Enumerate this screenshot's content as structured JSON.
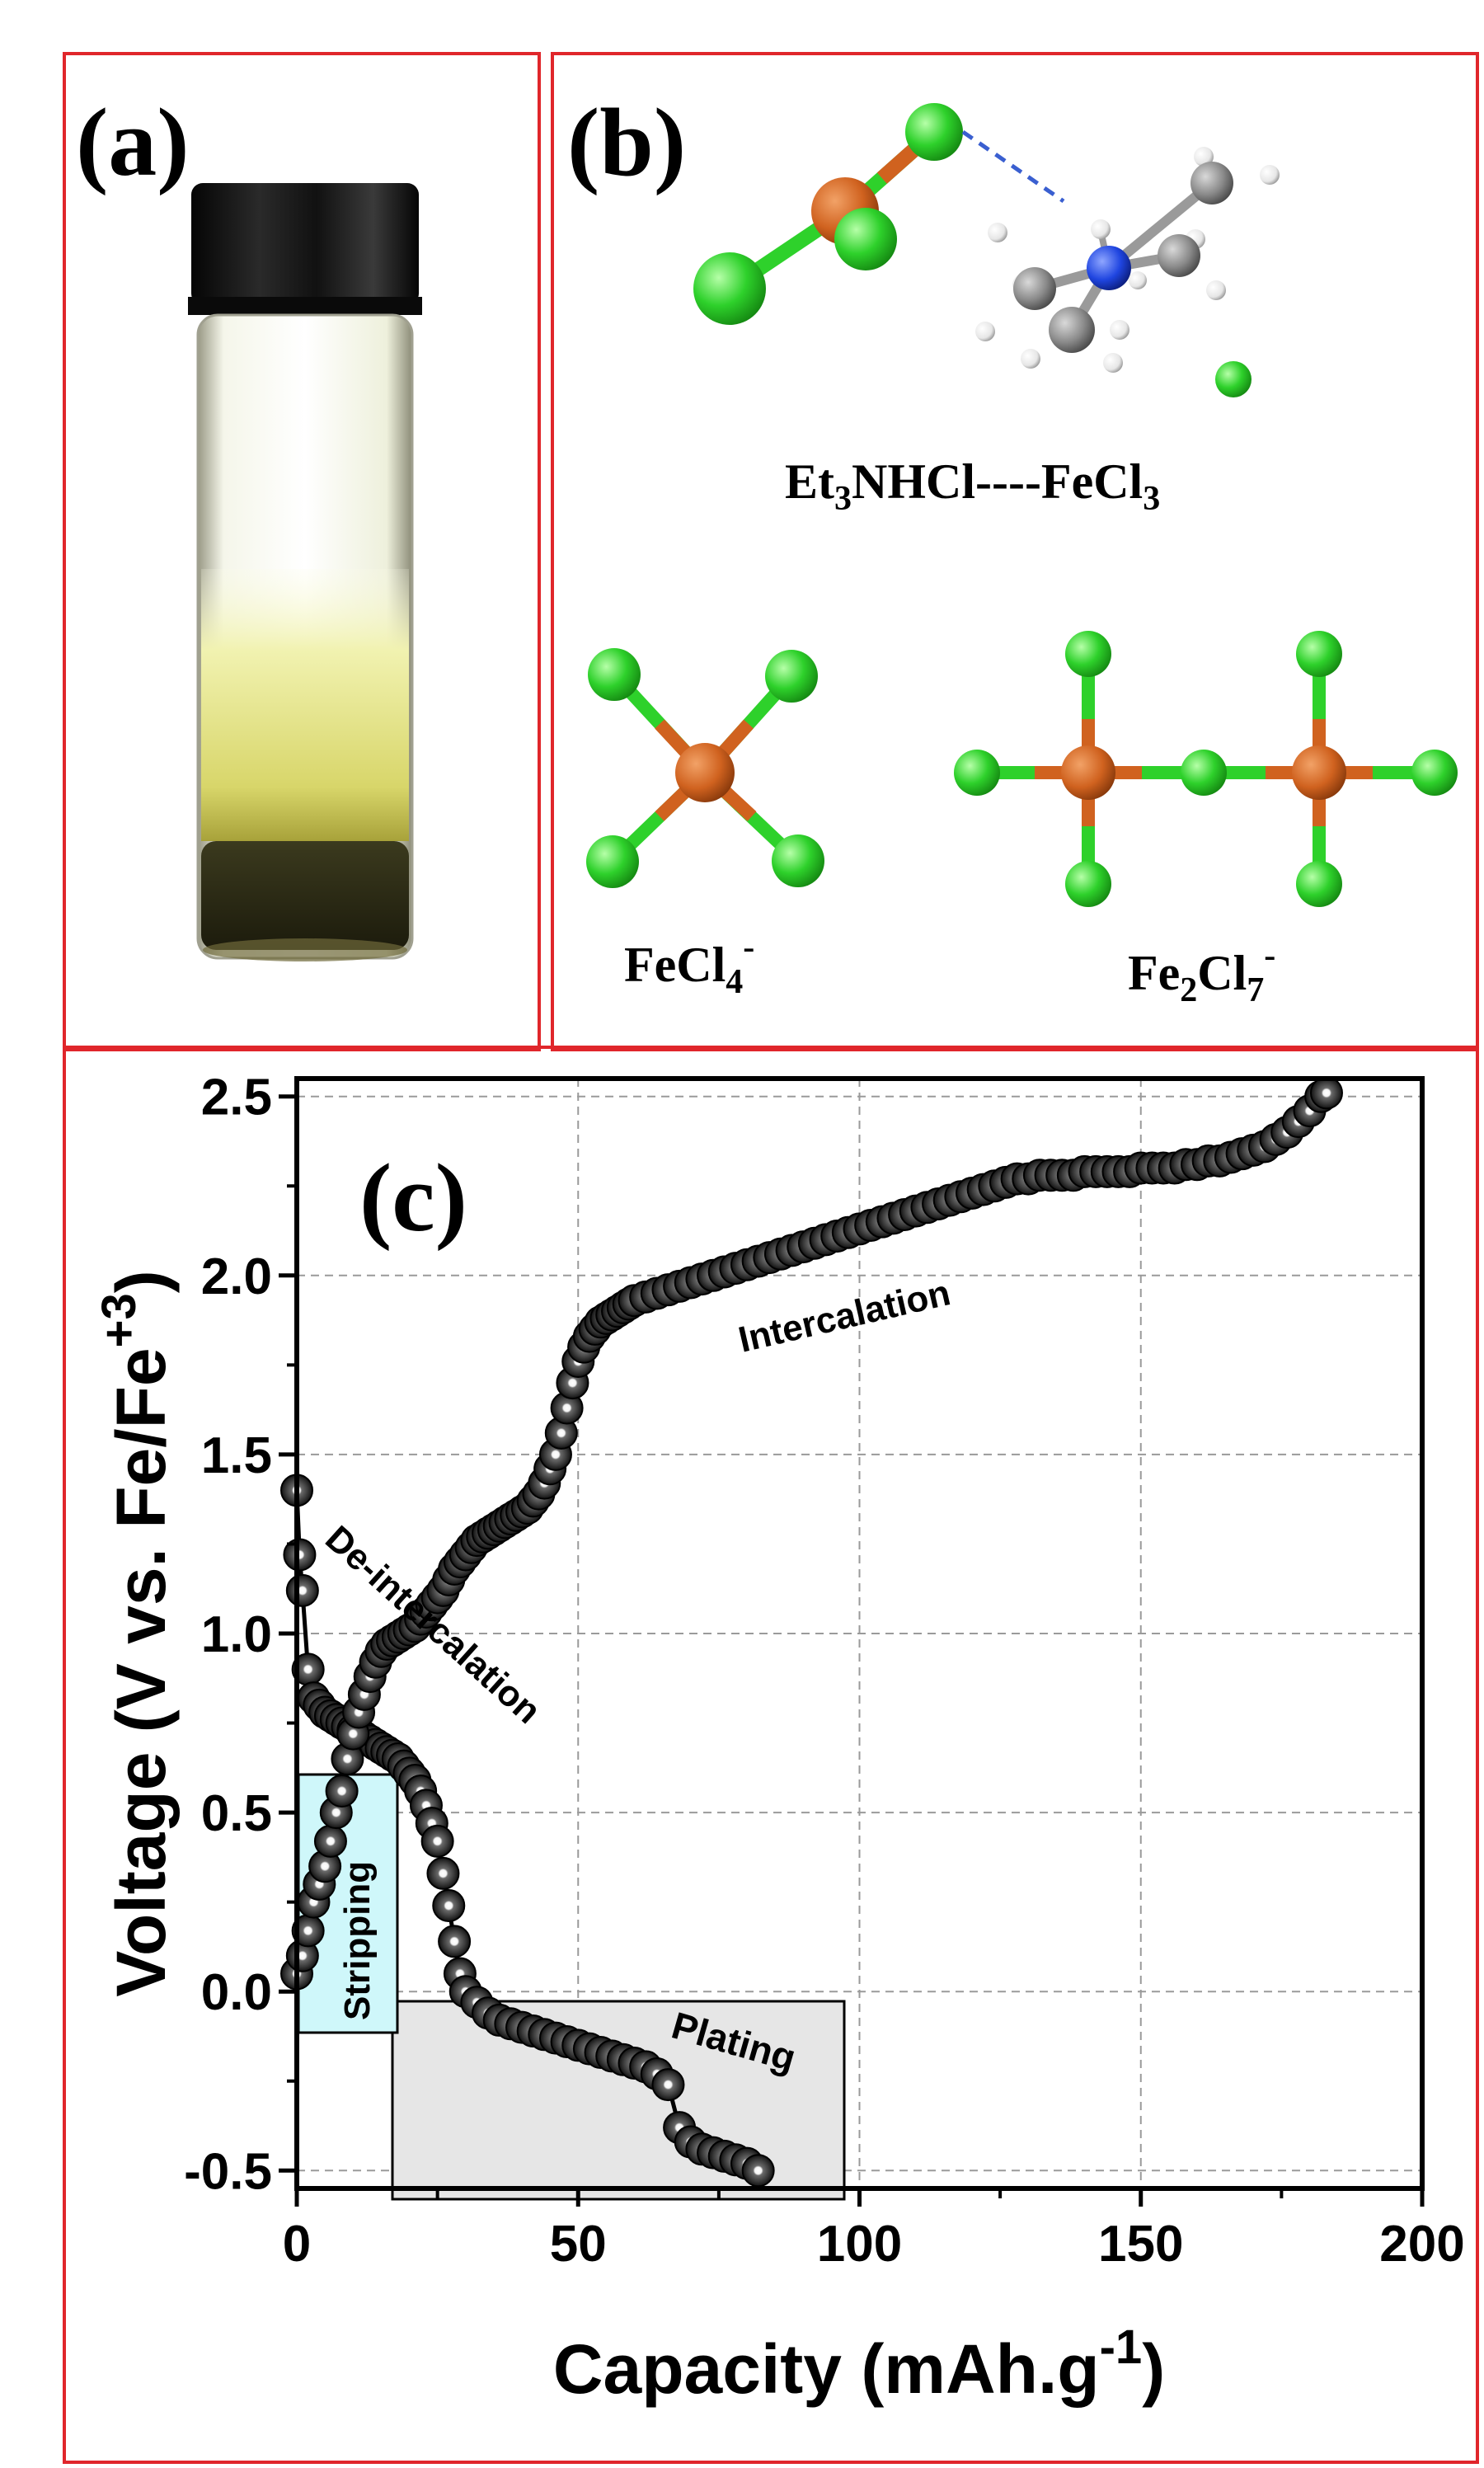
{
  "panels": {
    "a": {
      "label": "(a)"
    },
    "b": {
      "label": "(b)",
      "complex_label": {
        "main": "Et",
        "sub1": "3",
        "mid": "NHCl----FeCl",
        "sub2": "3"
      },
      "fecl4_label": {
        "main": "FeCl",
        "sub": "4",
        "sup": "-"
      },
      "fe2cl7_label": {
        "fe": "Fe",
        "sub1": "2",
        "cl": "Cl",
        "sub2": "7",
        "sup": "-"
      }
    },
    "c": {
      "label": "(c)"
    }
  },
  "colors": {
    "frame": "#e0262b",
    "iron": "#d0621f",
    "chlorine": "#2ed12b",
    "nitrogen": "#1f45e0",
    "carbon": "#8a8a8a",
    "hydrogen": "#f2f2f2",
    "marker": "#3a3a3a"
  },
  "chart_data": {
    "type": "scatter",
    "xlabel": "Capacity (mAh.g",
    "xlabel_sup": "-1",
    "xlabel_tail": ")",
    "ylabel": "Voltage (V vs. Fe/Fe",
    "ylabel_sup": "+3",
    "ylabel_tail": ")",
    "xlim": [
      0,
      200
    ],
    "ylim": [
      -0.55,
      2.55
    ],
    "xticks": [
      "0",
      "50",
      "100",
      "150",
      "200"
    ],
    "xtick_values": [
      0,
      50,
      100,
      150,
      200
    ],
    "yticks": [
      "-0.5",
      "0.0",
      "0.5",
      "1.0",
      "1.5",
      "2.0",
      "2.5"
    ],
    "ytick_values": [
      -0.5,
      0.0,
      0.5,
      1.0,
      1.5,
      2.0,
      2.5
    ],
    "grid": true,
    "annotations": [
      "Intercalation",
      "De-intercalation",
      "Stripping",
      "Plating"
    ],
    "series": [
      {
        "x": [
          0,
          0.5,
          1,
          2,
          3,
          4,
          5,
          6,
          7,
          8,
          9,
          10,
          11,
          12,
          13,
          14,
          15,
          16,
          17,
          18,
          19,
          20,
          21,
          22,
          23,
          24,
          25,
          26,
          27,
          28,
          29,
          30,
          32,
          34,
          36,
          38,
          40,
          42,
          44,
          46,
          48,
          50,
          52,
          54,
          56,
          58,
          60,
          62,
          64,
          66,
          68,
          70,
          72,
          74,
          76,
          78,
          80,
          82
        ],
        "y": [
          1.4,
          1.22,
          1.12,
          0.9,
          0.82,
          0.8,
          0.78,
          0.77,
          0.76,
          0.75,
          0.74,
          0.73,
          0.72,
          0.71,
          0.7,
          0.69,
          0.68,
          0.67,
          0.66,
          0.65,
          0.63,
          0.61,
          0.59,
          0.56,
          0.52,
          0.47,
          0.42,
          0.33,
          0.24,
          0.14,
          0.05,
          0.0,
          -0.03,
          -0.06,
          -0.08,
          -0.09,
          -0.1,
          -0.11,
          -0.12,
          -0.13,
          -0.14,
          -0.15,
          -0.16,
          -0.17,
          -0.18,
          -0.19,
          -0.2,
          -0.21,
          -0.23,
          -0.26,
          -0.38,
          -0.42,
          -0.44,
          -0.45,
          -0.46,
          -0.47,
          -0.48,
          -0.5
        ]
      },
      {
        "x": [
          0,
          1,
          2,
          3,
          4,
          5,
          6,
          7,
          8,
          9,
          10,
          11,
          12,
          13,
          14,
          15,
          16,
          17,
          18,
          19,
          20,
          21,
          22,
          23,
          24,
          25,
          26,
          27,
          28,
          29,
          30,
          31,
          32,
          33,
          34,
          35,
          36,
          37,
          38,
          39,
          40,
          41,
          42,
          43,
          44,
          45,
          46,
          47,
          48,
          49,
          50,
          51,
          52,
          53,
          54,
          55,
          56,
          57,
          58,
          59,
          60,
          62,
          64,
          66,
          68,
          70,
          72,
          74,
          76,
          78,
          80,
          82,
          84,
          86,
          88,
          90,
          92,
          94,
          96,
          98,
          100,
          102,
          104,
          106,
          108,
          110,
          112,
          114,
          116,
          118,
          120,
          122,
          124,
          126,
          128,
          130,
          132,
          134,
          136,
          138,
          140,
          142,
          144,
          146,
          148,
          150,
          152,
          154,
          156,
          158,
          160,
          162,
          164,
          166,
          168,
          170,
          172,
          174,
          176,
          178,
          180,
          182,
          183
        ],
        "y": [
          0.05,
          0.1,
          0.17,
          0.25,
          0.3,
          0.35,
          0.42,
          0.5,
          0.56,
          0.65,
          0.72,
          0.78,
          0.83,
          0.88,
          0.92,
          0.95,
          0.97,
          0.98,
          0.99,
          1.0,
          1.01,
          1.02,
          1.04,
          1.06,
          1.08,
          1.1,
          1.12,
          1.15,
          1.18,
          1.2,
          1.22,
          1.24,
          1.26,
          1.27,
          1.28,
          1.29,
          1.3,
          1.31,
          1.32,
          1.33,
          1.34,
          1.35,
          1.37,
          1.39,
          1.42,
          1.46,
          1.5,
          1.56,
          1.63,
          1.7,
          1.76,
          1.8,
          1.83,
          1.85,
          1.87,
          1.88,
          1.89,
          1.9,
          1.91,
          1.92,
          1.93,
          1.94,
          1.95,
          1.96,
          1.97,
          1.98,
          1.99,
          2.0,
          2.01,
          2.02,
          2.03,
          2.04,
          2.05,
          2.06,
          2.07,
          2.08,
          2.09,
          2.1,
          2.11,
          2.12,
          2.13,
          2.14,
          2.15,
          2.16,
          2.17,
          2.18,
          2.19,
          2.2,
          2.21,
          2.22,
          2.23,
          2.24,
          2.25,
          2.26,
          2.27,
          2.27,
          2.28,
          2.28,
          2.28,
          2.28,
          2.29,
          2.29,
          2.29,
          2.29,
          2.29,
          2.3,
          2.3,
          2.3,
          2.3,
          2.31,
          2.31,
          2.32,
          2.32,
          2.33,
          2.34,
          2.35,
          2.36,
          2.38,
          2.4,
          2.43,
          2.46,
          2.5,
          2.51
        ]
      }
    ]
  }
}
